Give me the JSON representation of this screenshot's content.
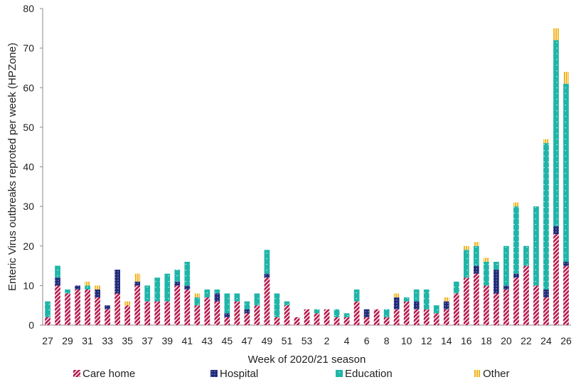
{
  "chart_data": {
    "type": "bar",
    "stacked": true,
    "title": "",
    "xlabel": "Week of 2020/21 season",
    "ylabel": "Enteric Virus outbreaks reproted per week (HPZone)",
    "ylim": [
      0,
      80
    ],
    "yticks": [
      0,
      10,
      20,
      30,
      40,
      50,
      60,
      70,
      80
    ],
    "grid": false,
    "legend_position": "bottom",
    "categories": [
      "27",
      "28",
      "29",
      "30",
      "31",
      "32",
      "33",
      "34",
      "35",
      "36",
      "37",
      "38",
      "39",
      "40",
      "41",
      "42",
      "43",
      "44",
      "45",
      "46",
      "47",
      "48",
      "49",
      "50",
      "51",
      "52",
      "53",
      "1",
      "2",
      "3",
      "4",
      "5",
      "6",
      "7",
      "8",
      "9",
      "10",
      "11",
      "12",
      "13",
      "14",
      "15",
      "16",
      "17",
      "18",
      "19",
      "20",
      "21",
      "22",
      "23",
      "24",
      "25",
      "26"
    ],
    "x_tick_labels": [
      "27",
      "29",
      "31",
      "33",
      "35",
      "37",
      "39",
      "41",
      "43",
      "45",
      "47",
      "49",
      "51",
      "53",
      "2",
      "4",
      "6",
      "8",
      "10",
      "12",
      "14",
      "16",
      "18",
      "20",
      "22",
      "24",
      "26"
    ],
    "series": [
      {
        "name": "Care home",
        "color": "#b5174b",
        "pattern": "diag",
        "values": [
          2,
          10,
          8,
          9,
          9,
          7,
          4,
          8,
          5,
          10,
          6,
          6,
          6,
          10,
          9,
          5,
          7,
          6,
          2,
          6,
          3,
          5,
          12,
          2,
          5,
          2,
          4,
          3,
          4,
          2,
          2,
          6,
          2,
          4,
          2,
          4,
          6,
          4,
          4,
          3,
          4,
          8,
          12,
          13,
          10,
          8,
          9,
          12,
          15,
          10,
          7,
          23,
          15
        ]
      },
      {
        "name": "Hospital",
        "color": "#1f2a7a",
        "pattern": "dots",
        "values": [
          0,
          2,
          0,
          1,
          0,
          2,
          1,
          6,
          0,
          1,
          0,
          0,
          0,
          1,
          1,
          0,
          0,
          2,
          1,
          0,
          1,
          0,
          1,
          0,
          0,
          0,
          0,
          0,
          0,
          0,
          0,
          0,
          2,
          0,
          0,
          3,
          0,
          2,
          0,
          0,
          2,
          0,
          0,
          2,
          0,
          6,
          1,
          1,
          0,
          0,
          2,
          2,
          1
        ]
      },
      {
        "name": "Education",
        "color": "#1fb5a8",
        "pattern": "dots",
        "values": [
          4,
          3,
          1,
          0,
          1,
          0,
          0,
          0,
          0,
          0,
          4,
          6,
          7,
          3,
          6,
          2,
          2,
          1,
          5,
          2,
          2,
          3,
          6,
          6,
          1,
          0,
          0,
          1,
          0,
          2,
          1,
          3,
          0,
          0,
          2,
          0,
          1,
          3,
          5,
          2,
          0,
          3,
          7,
          5,
          6,
          2,
          10,
          17,
          5,
          20,
          37,
          47,
          45
        ]
      },
      {
        "name": "Other",
        "color": "#f2b41f",
        "pattern": "vlines",
        "values": [
          0,
          0,
          0,
          0,
          1,
          1,
          0,
          0,
          1,
          2,
          0,
          0,
          0,
          0,
          0,
          1,
          0,
          0,
          0,
          0,
          0,
          0,
          0,
          0,
          0,
          0,
          0,
          0,
          0,
          0,
          0,
          0,
          0,
          0,
          0,
          1,
          0,
          0,
          0,
          0,
          1,
          0,
          1,
          1,
          1,
          0,
          0,
          1,
          0,
          0,
          1,
          3,
          3
        ]
      }
    ]
  }
}
